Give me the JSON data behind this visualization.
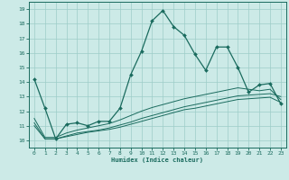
{
  "xlabel": "Humidex (Indice chaleur)",
  "xlim": [
    -0.5,
    23.5
  ],
  "ylim": [
    9.5,
    19.5
  ],
  "yticks": [
    10,
    11,
    12,
    13,
    14,
    15,
    16,
    17,
    18,
    19
  ],
  "xticks": [
    0,
    1,
    2,
    3,
    4,
    5,
    6,
    7,
    8,
    9,
    10,
    11,
    12,
    13,
    14,
    15,
    16,
    17,
    18,
    19,
    20,
    21,
    22,
    23
  ],
  "bg_color": "#cceae7",
  "line_color": "#1a6b5e",
  "grid_color": "#9dcdc8",
  "line1_x": [
    0,
    1,
    2,
    3,
    4,
    5,
    6,
    7,
    8,
    9,
    10,
    11,
    12,
    13,
    14,
    15,
    16,
    17,
    18,
    19,
    20,
    21,
    22,
    23
  ],
  "line1_y": [
    14.2,
    12.2,
    10.1,
    11.1,
    11.2,
    11.0,
    11.3,
    11.3,
    12.2,
    14.5,
    16.1,
    18.2,
    18.9,
    17.8,
    17.2,
    15.9,
    14.8,
    16.4,
    16.4,
    15.0,
    13.3,
    13.8,
    13.9,
    12.5
  ],
  "line2_x": [
    0,
    1,
    2,
    3,
    4,
    5,
    6,
    7,
    8,
    9,
    10,
    11,
    12,
    13,
    14,
    15,
    16,
    17,
    18,
    19,
    20,
    21,
    22,
    23
  ],
  "line2_y": [
    11.5,
    10.2,
    10.2,
    10.5,
    10.7,
    10.85,
    11.0,
    11.15,
    11.4,
    11.7,
    12.0,
    12.25,
    12.45,
    12.65,
    12.85,
    13.0,
    13.15,
    13.3,
    13.45,
    13.6,
    13.5,
    13.4,
    13.5,
    12.8
  ],
  "line3_x": [
    0,
    1,
    2,
    3,
    4,
    5,
    6,
    7,
    8,
    9,
    10,
    11,
    12,
    13,
    14,
    15,
    16,
    17,
    18,
    19,
    20,
    21,
    22,
    23
  ],
  "line3_y": [
    11.2,
    10.1,
    10.1,
    10.3,
    10.5,
    10.6,
    10.7,
    10.85,
    11.05,
    11.25,
    11.5,
    11.7,
    11.9,
    12.1,
    12.3,
    12.45,
    12.6,
    12.75,
    12.9,
    13.05,
    13.1,
    13.15,
    13.2,
    13.0
  ],
  "line4_x": [
    0,
    1,
    2,
    3,
    4,
    5,
    6,
    7,
    8,
    9,
    10,
    11,
    12,
    13,
    14,
    15,
    16,
    17,
    18,
    19,
    20,
    21,
    22,
    23
  ],
  "line4_y": [
    11.0,
    10.1,
    10.1,
    10.25,
    10.4,
    10.55,
    10.65,
    10.75,
    10.9,
    11.1,
    11.3,
    11.5,
    11.7,
    11.9,
    12.1,
    12.2,
    12.35,
    12.5,
    12.65,
    12.8,
    12.85,
    12.9,
    12.95,
    12.6
  ]
}
